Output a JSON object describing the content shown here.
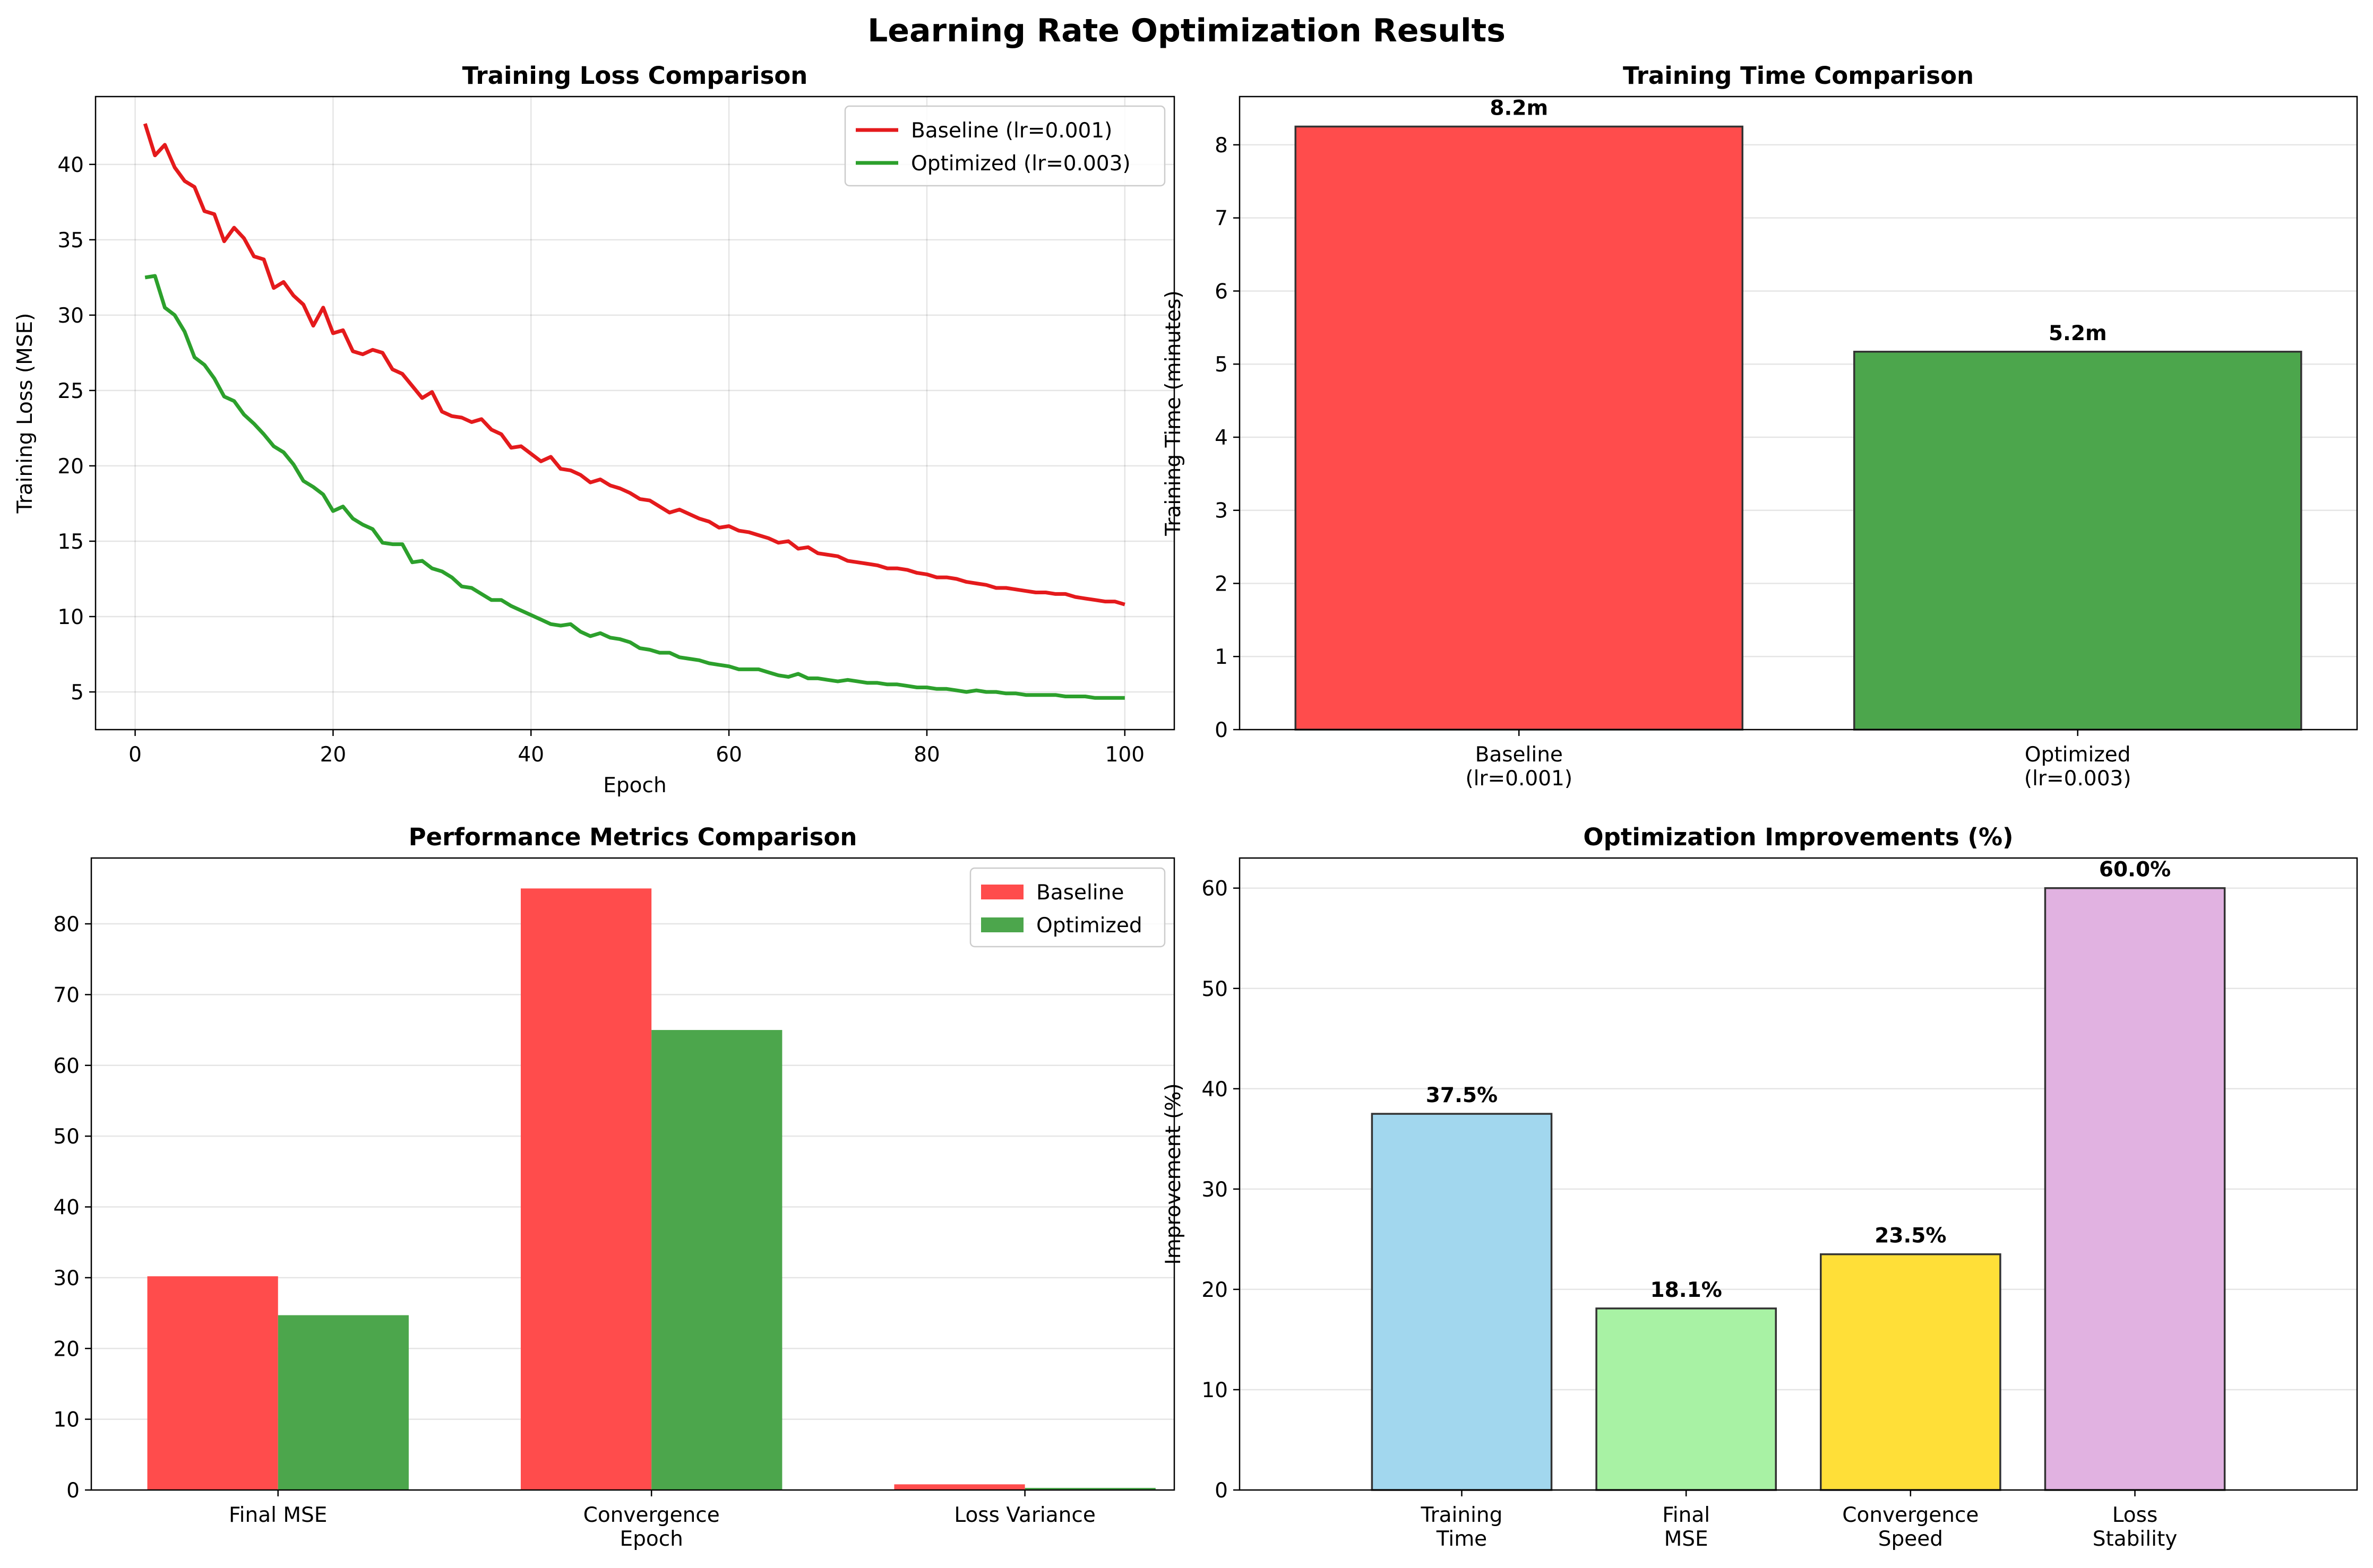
{
  "figure": {
    "title": "Learning Rate Optimization Results"
  },
  "chart_data": [
    {
      "type": "line",
      "title": "Training Loss Comparison",
      "xlabel": "Epoch",
      "ylabel": "Training Loss (MSE)",
      "xlim": [
        -4,
        105
      ],
      "ylim": [
        2.5,
        44.5
      ],
      "xticks": [
        0,
        20,
        40,
        60,
        80,
        100
      ],
      "yticks": [
        5,
        10,
        15,
        20,
        25,
        30,
        35,
        40
      ],
      "grid": true,
      "legend": "top-right",
      "series": [
        {
          "name": "Baseline (lr=0.001)",
          "color": "#e41a1c",
          "x": [
            1,
            2,
            3,
            4,
            5,
            6,
            7,
            8,
            9,
            10,
            11,
            12,
            13,
            14,
            15,
            16,
            17,
            18,
            19,
            20,
            21,
            22,
            23,
            24,
            25,
            26,
            27,
            28,
            29,
            30,
            31,
            32,
            33,
            34,
            35,
            36,
            37,
            38,
            39,
            40,
            41,
            42,
            43,
            44,
            45,
            46,
            47,
            48,
            49,
            50,
            51,
            52,
            53,
            54,
            55,
            56,
            57,
            58,
            59,
            60,
            61,
            62,
            63,
            64,
            65,
            66,
            67,
            68,
            69,
            70,
            71,
            72,
            73,
            74,
            75,
            76,
            77,
            78,
            79,
            80,
            81,
            82,
            83,
            84,
            85,
            86,
            87,
            88,
            89,
            90,
            91,
            92,
            93,
            94,
            95,
            96,
            97,
            98,
            99,
            100
          ],
          "values": [
            42.7,
            40.6,
            41.3,
            39.8,
            38.9,
            38.5,
            36.9,
            36.7,
            34.9,
            35.8,
            35.1,
            33.9,
            33.7,
            31.8,
            32.2,
            31.3,
            30.7,
            29.3,
            30.5,
            28.8,
            29.0,
            27.6,
            27.4,
            27.7,
            27.5,
            26.4,
            26.1,
            25.3,
            24.5,
            24.9,
            23.6,
            23.3,
            23.2,
            22.9,
            23.1,
            22.4,
            22.1,
            21.2,
            21.3,
            20.8,
            20.3,
            20.6,
            19.8,
            19.7,
            19.4,
            18.9,
            19.1,
            18.7,
            18.5,
            18.2,
            17.8,
            17.7,
            17.3,
            16.9,
            17.1,
            16.8,
            16.5,
            16.3,
            15.9,
            16.0,
            15.7,
            15.6,
            15.4,
            15.2,
            14.9,
            15.0,
            14.5,
            14.6,
            14.2,
            14.1,
            14.0,
            13.7,
            13.6,
            13.5,
            13.4,
            13.2,
            13.2,
            13.1,
            12.9,
            12.8,
            12.6,
            12.6,
            12.5,
            12.3,
            12.2,
            12.1,
            11.9,
            11.9,
            11.8,
            11.7,
            11.6,
            11.6,
            11.5,
            11.5,
            11.3,
            11.2,
            11.1,
            11.0,
            11.0,
            10.8
          ]
        },
        {
          "name": "Optimized (lr=0.003)",
          "color": "#2ca02c",
          "x": [
            1,
            2,
            3,
            4,
            5,
            6,
            7,
            8,
            9,
            10,
            11,
            12,
            13,
            14,
            15,
            16,
            17,
            18,
            19,
            20,
            21,
            22,
            23,
            24,
            25,
            26,
            27,
            28,
            29,
            30,
            31,
            32,
            33,
            34,
            35,
            36,
            37,
            38,
            39,
            40,
            41,
            42,
            43,
            44,
            45,
            46,
            47,
            48,
            49,
            50,
            51,
            52,
            53,
            54,
            55,
            56,
            57,
            58,
            59,
            60,
            61,
            62,
            63,
            64,
            65,
            66,
            67,
            68,
            69,
            70,
            71,
            72,
            73,
            74,
            75,
            76,
            77,
            78,
            79,
            80,
            81,
            82,
            83,
            84,
            85,
            86,
            87,
            88,
            89,
            90,
            91,
            92,
            93,
            94,
            95,
            96,
            97,
            98,
            99,
            100
          ],
          "values": [
            32.5,
            32.6,
            30.5,
            30.0,
            28.9,
            27.2,
            26.7,
            25.8,
            24.6,
            24.3,
            23.4,
            22.8,
            22.1,
            21.3,
            20.9,
            20.1,
            19.0,
            18.6,
            18.1,
            17.0,
            17.3,
            16.5,
            16.1,
            15.8,
            14.9,
            14.8,
            14.8,
            13.6,
            13.7,
            13.2,
            13.0,
            12.6,
            12.0,
            11.9,
            11.5,
            11.1,
            11.1,
            10.7,
            10.4,
            10.1,
            9.8,
            9.5,
            9.4,
            9.5,
            9.0,
            8.7,
            8.9,
            8.6,
            8.5,
            8.3,
            7.9,
            7.8,
            7.6,
            7.6,
            7.3,
            7.2,
            7.1,
            6.9,
            6.8,
            6.7,
            6.5,
            6.5,
            6.5,
            6.3,
            6.1,
            6.0,
            6.2,
            5.9,
            5.9,
            5.8,
            5.7,
            5.8,
            5.7,
            5.6,
            5.6,
            5.5,
            5.5,
            5.4,
            5.3,
            5.3,
            5.2,
            5.2,
            5.1,
            5.0,
            5.1,
            5.0,
            5.0,
            4.9,
            4.9,
            4.8,
            4.8,
            4.8,
            4.8,
            4.7,
            4.7,
            4.7,
            4.6,
            4.6,
            4.6,
            4.6
          ]
        }
      ]
    },
    {
      "type": "bar",
      "title": "Training Time Comparison",
      "xlabel": "",
      "ylabel": "Training Time (minutes)",
      "ylim": [
        0,
        8.66
      ],
      "yticks": [
        0,
        1,
        2,
        3,
        4,
        5,
        6,
        7,
        8
      ],
      "grid": true,
      "categories": [
        [
          "Baseline",
          "(lr=0.001)"
        ],
        [
          "Optimized",
          "(lr=0.003)"
        ]
      ],
      "values": [
        8.25,
        5.17
      ],
      "labels": [
        "8.2m",
        "5.2m"
      ],
      "colors": [
        "#ff4c4c",
        "#4ca64c"
      ]
    },
    {
      "type": "bar",
      "title": "Performance Metrics Comparison",
      "xlabel": "",
      "ylabel": "",
      "ylim": [
        0,
        89.3
      ],
      "yticks": [
        0,
        10,
        20,
        30,
        40,
        50,
        60,
        70,
        80
      ],
      "grid": true,
      "legend": "top-right",
      "categories": [
        [
          "Final MSE"
        ],
        [
          "Convergence",
          "Epoch"
        ],
        [
          "Loss Variance"
        ]
      ],
      "series": [
        {
          "name": "Baseline",
          "color": "#ff4c4c",
          "values": [
            30.2,
            85.0,
            0.8
          ]
        },
        {
          "name": "Optimized",
          "color": "#4ca64c",
          "values": [
            24.7,
            65.0,
            0.3
          ]
        }
      ]
    },
    {
      "type": "bar",
      "title": "Optimization Improvements (%)",
      "xlabel": "",
      "ylabel": "Improvement (%)",
      "ylim": [
        0,
        63
      ],
      "yticks": [
        0,
        10,
        20,
        30,
        40,
        50,
        60
      ],
      "grid": true,
      "categories": [
        [
          "Training",
          "Time"
        ],
        [
          "Final",
          "MSE"
        ],
        [
          "Convergence",
          "Speed"
        ],
        [
          "Loss",
          "Stability"
        ]
      ],
      "values": [
        37.5,
        18.1,
        23.5,
        60.0
      ],
      "labels": [
        "37.5%",
        "18.1%",
        "23.5%",
        "60.0%"
      ],
      "colors": [
        "#a2d7ee",
        "#a8f2a4",
        "#ffdf38",
        "#e1b2e1"
      ]
    }
  ]
}
